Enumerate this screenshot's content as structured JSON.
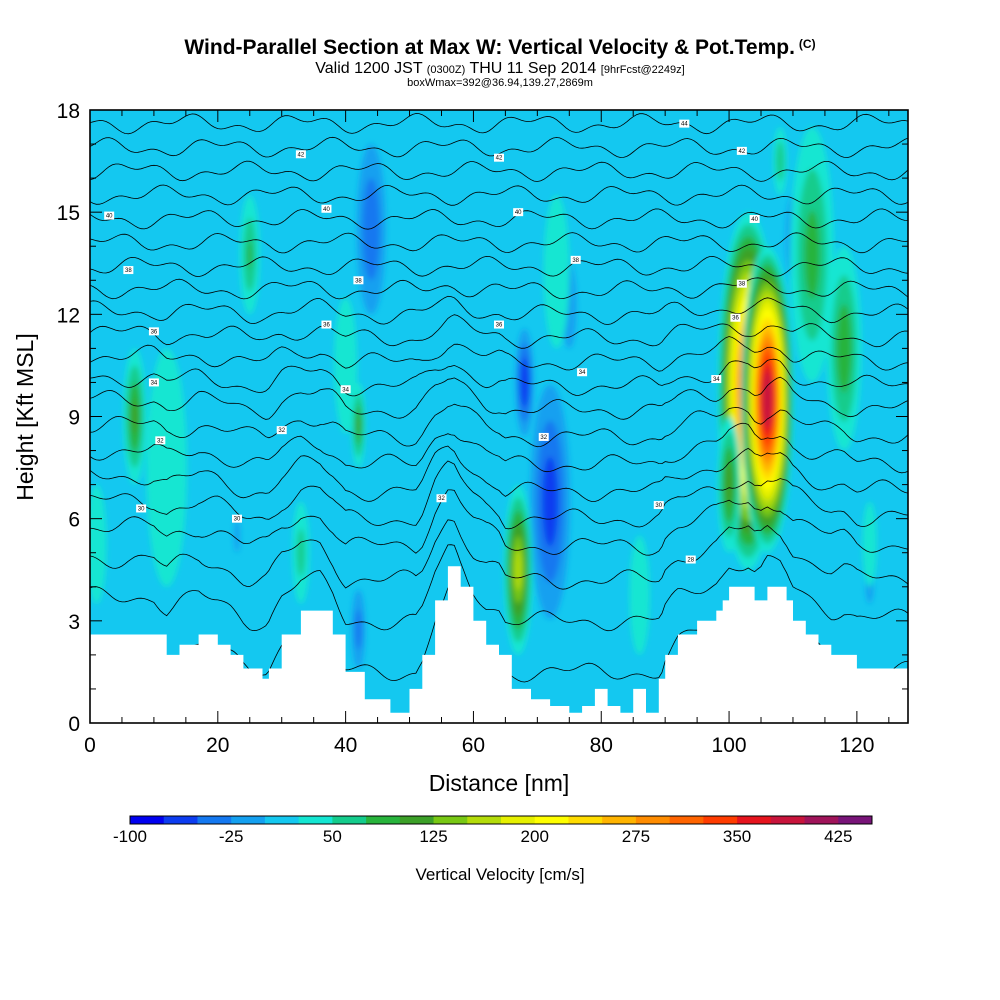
{
  "title": {
    "main": "Wind-Parallel Section at Max W: Vertical Velocity & Pot.Temp.",
    "mark": "(C)",
    "valid_prefix": "Valid 1200 JST",
    "valid_utc": "(0300Z)",
    "valid_date": "THU 11 Sep 2014",
    "forecast": "[9hrFcst@2249z]",
    "boxwmax": "boxWmax=392@36.94,139.27,2869m"
  },
  "chart_data": {
    "type": "heatmap",
    "xlabel": "Distance [nm]",
    "ylabel": "Height [Kft MSL]",
    "xlim": [
      0,
      128
    ],
    "ylim": [
      0,
      18
    ],
    "x_ticks": [
      "0",
      "20",
      "40",
      "60",
      "80",
      "100",
      "120"
    ],
    "y_ticks": [
      "0",
      "3",
      "6",
      "9",
      "12",
      "15",
      "18"
    ],
    "colorbar": {
      "label": "Vertical Velocity [cm/s]",
      "tick_labels": [
        "-100",
        "-25",
        "50",
        "125",
        "200",
        "275",
        "350",
        "425"
      ],
      "levels": [
        -100,
        -75,
        -50,
        -25,
        0,
        25,
        50,
        75,
        100,
        125,
        150,
        175,
        200,
        225,
        250,
        275,
        300,
        325,
        350,
        375,
        400,
        425,
        450
      ],
      "colors": [
        "#0000f0",
        "#0c3cf0",
        "#1478f0",
        "#14a0f0",
        "#14c8f0",
        "#14e6d2",
        "#14cc8c",
        "#28b43c",
        "#3ca028",
        "#78c814",
        "#b4dc0a",
        "#e6f000",
        "#ffff00",
        "#ffdc00",
        "#ffb400",
        "#ff8c00",
        "#ff6400",
        "#ff3c00",
        "#e6141e",
        "#c8143c",
        "#a0145a",
        "#781478"
      ]
    },
    "background_velocity": 5,
    "updrafts": [
      {
        "x": 7,
        "z_bottom": 7.0,
        "z_top": 11.0,
        "peak": 110
      },
      {
        "x": 1,
        "z_bottom": 3.5,
        "z_top": 7.0,
        "peak": 45
      },
      {
        "x": 12,
        "z_bottom": 4.0,
        "z_top": 11.0,
        "peak": 35
      },
      {
        "x": 25,
        "z_bottom": 12.0,
        "z_top": 15.5,
        "peak": 80
      },
      {
        "x": 33,
        "z_bottom": 3.5,
        "z_top": 6.5,
        "peak": 65
      },
      {
        "x": 40,
        "z_bottom": 8.5,
        "z_top": 12.5,
        "peak": 50
      },
      {
        "x": 42,
        "z_bottom": 7.5,
        "z_top": 10.0,
        "peak": 105
      },
      {
        "x": 67,
        "z_bottom": 2.0,
        "z_top": 7.0,
        "peak": 165
      },
      {
        "x": 73,
        "z_bottom": 11.0,
        "z_top": 15.5,
        "peak": 45
      },
      {
        "x": 86,
        "z_bottom": 2.0,
        "z_top": 5.5,
        "peak": 45
      },
      {
        "x": 103,
        "z_bottom": 4.5,
        "z_top": 15.0,
        "peak": 340
      },
      {
        "x": 106,
        "z_bottom": 5.0,
        "z_top": 14.0,
        "peak": 390
      },
      {
        "x": 100,
        "z_bottom": 5.0,
        "z_top": 9.0,
        "peak": 120
      },
      {
        "x": 113,
        "z_bottom": 10.0,
        "z_top": 17.5,
        "peak": 90
      },
      {
        "x": 118,
        "z_bottom": 8.0,
        "z_top": 14.0,
        "peak": 100
      },
      {
        "x": 108,
        "z_bottom": 15.5,
        "z_top": 17.5,
        "peak": 75
      },
      {
        "x": 122,
        "z_bottom": 4.0,
        "z_top": 6.5,
        "peak": 40
      }
    ],
    "downdrafts": [
      {
        "x": 44,
        "z_bottom": 11.0,
        "z_top": 18.0,
        "peak": -70
      },
      {
        "x": 42,
        "z_bottom": 1.0,
        "z_top": 4.5,
        "peak": -60
      },
      {
        "x": 68,
        "z_bottom": 8.0,
        "z_top": 12.0,
        "peak": -95
      },
      {
        "x": 72,
        "z_bottom": 2.0,
        "z_top": 11.0,
        "peak": -85
      },
      {
        "x": 75,
        "z_bottom": 10.0,
        "z_top": 14.5,
        "peak": -45
      },
      {
        "x": 58,
        "z_bottom": 0.5,
        "z_top": 3.0,
        "peak": -40
      },
      {
        "x": 110,
        "z_bottom": 12.0,
        "z_top": 16.5,
        "peak": -45
      },
      {
        "x": 122,
        "z_bottom": 3.0,
        "z_top": 5.5,
        "peak": -50
      },
      {
        "x": 23,
        "z_bottom": 4.0,
        "z_top": 7.0,
        "peak": -30
      }
    ],
    "terrain": {
      "distance": [
        0,
        5,
        10,
        12,
        14,
        17,
        20,
        22,
        24,
        27,
        28,
        30,
        33,
        36,
        38,
        40,
        43,
        47,
        50,
        52,
        54,
        56,
        57,
        58,
        60,
        62,
        64,
        66,
        69,
        72,
        75,
        77,
        79,
        81,
        83,
        85,
        87,
        89,
        90,
        92,
        95,
        98,
        99,
        100,
        101,
        102,
        103,
        104,
        105,
        106,
        107,
        108,
        109,
        110,
        112,
        114,
        116,
        118,
        120,
        123,
        128
      ],
      "height": [
        2.6,
        2.6,
        2.6,
        2.0,
        2.3,
        2.6,
        2.3,
        2.0,
        1.6,
        1.3,
        1.6,
        2.6,
        3.3,
        3.3,
        2.6,
        1.5,
        0.7,
        0.3,
        1.0,
        2.0,
        3.6,
        4.6,
        4.6,
        4.0,
        3.0,
        2.3,
        2.0,
        1.0,
        0.7,
        0.5,
        0.3,
        0.5,
        1.0,
        0.5,
        0.3,
        1.0,
        0.3,
        1.3,
        2.0,
        2.6,
        3.0,
        3.3,
        3.6,
        4.0,
        4.0,
        4.0,
        4.0,
        3.6,
        3.6,
        4.0,
        4.0,
        4.0,
        3.6,
        3.0,
        2.6,
        2.3,
        2.0,
        2.0,
        1.6,
        1.6,
        1.6
      ]
    },
    "isentropes": {
      "levels_kft": [
        1.5,
        3,
        4.2,
        5.2,
        6,
        6.8,
        7.6,
        8.4,
        9.2,
        9.9,
        10.6,
        11.3,
        12,
        12.7,
        13.4,
        14.1,
        14.8,
        15.5,
        16.2,
        16.9,
        17.6
      ],
      "labels": [
        {
          "x": 8,
          "z": 6.3,
          "text": "30"
        },
        {
          "x": 23,
          "z": 6.0,
          "text": "30"
        },
        {
          "x": 30,
          "z": 8.6,
          "text": "32"
        },
        {
          "x": 55,
          "z": 6.6,
          "text": "32"
        },
        {
          "x": 89,
          "z": 6.4,
          "text": "30"
        },
        {
          "x": 94,
          "z": 4.8,
          "text": "28"
        },
        {
          "x": 11,
          "z": 8.3,
          "text": "32"
        },
        {
          "x": 71,
          "z": 8.4,
          "text": "32"
        },
        {
          "x": 10,
          "z": 10.0,
          "text": "34"
        },
        {
          "x": 40,
          "z": 9.8,
          "text": "34"
        },
        {
          "x": 77,
          "z": 10.3,
          "text": "34"
        },
        {
          "x": 98,
          "z": 10.1,
          "text": "34"
        },
        {
          "x": 10,
          "z": 11.5,
          "text": "36"
        },
        {
          "x": 37,
          "z": 11.7,
          "text": "36"
        },
        {
          "x": 64,
          "z": 11.7,
          "text": "36"
        },
        {
          "x": 101,
          "z": 11.9,
          "text": "36"
        },
        {
          "x": 6,
          "z": 13.3,
          "text": "38"
        },
        {
          "x": 42,
          "z": 13.0,
          "text": "38"
        },
        {
          "x": 76,
          "z": 13.6,
          "text": "38"
        },
        {
          "x": 102,
          "z": 12.9,
          "text": "38"
        },
        {
          "x": 3,
          "z": 14.9,
          "text": "40"
        },
        {
          "x": 37,
          "z": 15.1,
          "text": "40"
        },
        {
          "x": 67,
          "z": 15.0,
          "text": "40"
        },
        {
          "x": 104,
          "z": 14.8,
          "text": "40"
        },
        {
          "x": 33,
          "z": 16.7,
          "text": "42"
        },
        {
          "x": 64,
          "z": 16.6,
          "text": "42"
        },
        {
          "x": 102,
          "z": 16.8,
          "text": "42"
        },
        {
          "x": 93,
          "z": 17.6,
          "text": "44"
        }
      ]
    }
  }
}
